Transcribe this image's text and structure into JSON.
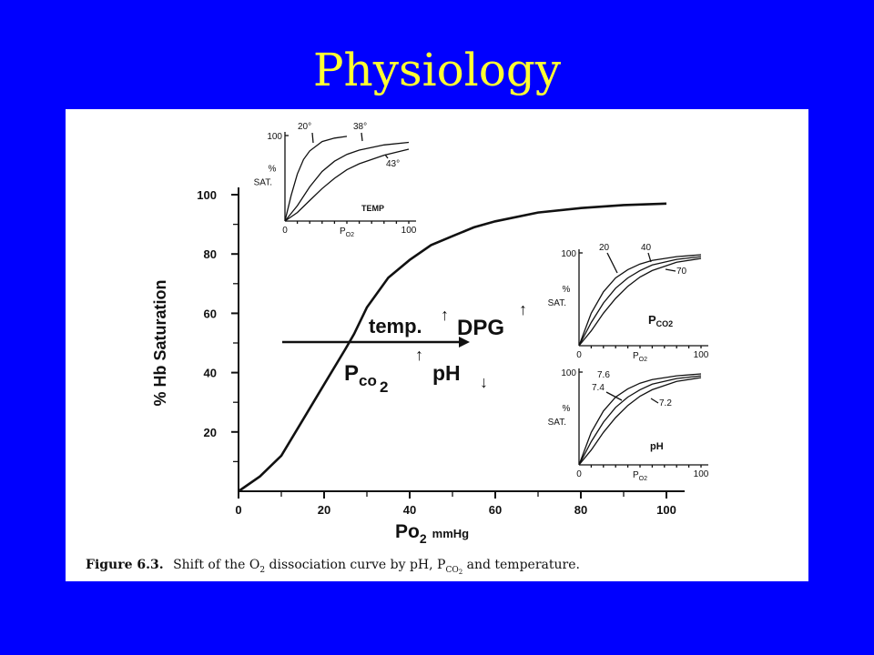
{
  "slide": {
    "title": "Physiology"
  },
  "figure": {
    "caption_prefix": "Figure 6.3.",
    "caption_main": "Shift of the O",
    "caption_sub": "2",
    "caption_mid": " dissociation curve by pH, P",
    "caption_co": "CO",
    "caption_co_sub": "2",
    "caption_end": " and temperature.",
    "annotations": {
      "temp": "temp.",
      "dpg": "DPG",
      "pco2_main": "P",
      "pco2_sub": "co",
      "pco2_sub2": "2",
      "ph": "pH",
      "up_arrow": "↑",
      "down_arrow": "↓"
    }
  },
  "chart_data": [
    {
      "type": "line",
      "xlabel_main": "Po",
      "xlabel_sub": "2",
      "xlabel_unit": "mmHg",
      "ylabel": "% Hb Saturation",
      "xlim": [
        0,
        100
      ],
      "ylim": [
        0,
        100
      ],
      "xticks": [
        0,
        20,
        40,
        60,
        80,
        100
      ],
      "yticks": [
        20,
        40,
        60,
        80,
        100
      ],
      "series": [
        {
          "x": [
            0,
            5,
            10,
            15,
            20,
            25,
            27,
            30,
            35,
            40,
            45,
            50,
            55,
            60,
            70,
            80,
            90,
            100
          ],
          "y": [
            0,
            5,
            12,
            24,
            36,
            48,
            53,
            62,
            72,
            78,
            83,
            86,
            89,
            91,
            94,
            95.5,
            96.5,
            97
          ]
        }
      ]
    },
    {
      "type": "line",
      "ylabel": "% SAT.",
      "xlabel_main": "P",
      "xlabel_sub": "O2",
      "corner_label": "TEMP",
      "xlim": [
        0,
        100
      ],
      "ylim": [
        0,
        100
      ],
      "xticks": [
        0,
        100
      ],
      "yticks": [
        100
      ],
      "series": [
        {
          "name": "20°",
          "x": [
            0,
            5,
            10,
            15,
            20,
            30,
            40,
            50
          ],
          "y": [
            0,
            30,
            55,
            72,
            82,
            93,
            97,
            99
          ]
        },
        {
          "name": "38°",
          "x": [
            0,
            10,
            20,
            30,
            40,
            50,
            60,
            80,
            100
          ],
          "y": [
            0,
            18,
            40,
            58,
            70,
            78,
            83,
            89,
            92
          ]
        },
        {
          "name": "43°",
          "x": [
            0,
            10,
            20,
            30,
            40,
            50,
            60,
            80,
            100
          ],
          "y": [
            0,
            10,
            24,
            38,
            50,
            60,
            67,
            77,
            84
          ]
        }
      ]
    },
    {
      "type": "line",
      "ylabel": "% SAT.",
      "xlabel_main": "P",
      "xlabel_sub": "O2",
      "corner_label_main": "P",
      "corner_label_sub": "CO2",
      "xlim": [
        0,
        100
      ],
      "ylim": [
        0,
        100
      ],
      "xticks": [
        0,
        100
      ],
      "yticks": [
        100
      ],
      "series": [
        {
          "name": "20",
          "x": [
            0,
            10,
            20,
            30,
            40,
            50,
            60,
            80,
            100
          ],
          "y": [
            0,
            35,
            58,
            73,
            82,
            88,
            92,
            96,
            98
          ]
        },
        {
          "name": "40",
          "x": [
            0,
            10,
            20,
            30,
            40,
            50,
            60,
            80,
            100
          ],
          "y": [
            0,
            25,
            46,
            62,
            73,
            81,
            87,
            93,
            96
          ]
        },
        {
          "name": "70",
          "x": [
            0,
            10,
            20,
            30,
            40,
            50,
            60,
            80,
            100
          ],
          "y": [
            0,
            16,
            35,
            51,
            64,
            74,
            81,
            90,
            94
          ]
        }
      ]
    },
    {
      "type": "line",
      "ylabel": "% SAT.",
      "xlabel_main": "P",
      "xlabel_sub": "O2",
      "corner_label": "pH",
      "xlim": [
        0,
        100
      ],
      "ylim": [
        0,
        100
      ],
      "xticks": [
        0,
        100
      ],
      "yticks": [
        100
      ],
      "series": [
        {
          "name": "7.6",
          "x": [
            0,
            10,
            20,
            30,
            40,
            50,
            60,
            80,
            100
          ],
          "y": [
            0,
            35,
            58,
            73,
            82,
            88,
            92,
            96,
            98
          ]
        },
        {
          "name": "7.4",
          "x": [
            0,
            10,
            20,
            30,
            40,
            50,
            60,
            80,
            100
          ],
          "y": [
            0,
            25,
            46,
            62,
            73,
            81,
            87,
            93,
            96
          ]
        },
        {
          "name": "7.2",
          "x": [
            0,
            10,
            20,
            30,
            40,
            50,
            60,
            80,
            100
          ],
          "y": [
            0,
            16,
            35,
            51,
            64,
            74,
            81,
            90,
            94
          ]
        }
      ]
    }
  ]
}
